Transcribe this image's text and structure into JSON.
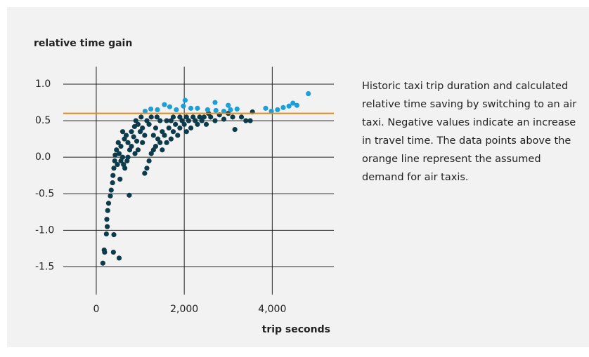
{
  "chart_data": {
    "type": "scatter",
    "ylabel": "relative time gain",
    "xlabel": "trip seconds",
    "description": "Historic taxi trip duration and calculated relative time saving by switching to an air taxi. Negative values indicate an increase in travel time. The data points above the orange line represent the assumed demand for air taxis.",
    "xlim": [
      -750,
      5400
    ],
    "ylim": [
      -1.88,
      1.24
    ],
    "xticks": [
      0,
      {
        "value": 2000,
        "label": "2,000"
      },
      {
        "value": 4000,
        "label": "4,000"
      }
    ],
    "yticks": [
      {
        "value": 1,
        "label": "1.0"
      },
      0.5,
      {
        "value": 0,
        "label": "0.0"
      },
      -0.5,
      {
        "value": -1,
        "label": "-1.0"
      },
      -1.5
    ],
    "grid": true,
    "hline": {
      "value": 0.6,
      "color": "#e08a1e"
    },
    "series": [
      {
        "color": "#0d3b4a",
        "x": [
          150,
          180,
          190,
          230,
          250,
          240,
          260,
          280,
          320,
          340,
          370,
          380,
          400,
          420,
          430,
          390,
          400,
          520,
          540,
          750,
          460,
          520,
          560,
          600,
          620,
          650,
          700,
          640,
          680,
          720,
          760,
          800,
          800,
          850,
          870,
          900,
          950,
          920,
          1000,
          1020,
          1050,
          1100,
          1100,
          1150,
          1200,
          1250,
          1300,
          1350,
          1150,
          1200,
          1250,
          1300,
          1350,
          1400,
          1450,
          1450,
          1500,
          1550,
          1600,
          1600,
          1650,
          1700,
          1750,
          1750,
          1800,
          1850,
          1900,
          1900,
          1950,
          2000,
          2050,
          2100,
          2150,
          2200,
          2300,
          2350,
          2400,
          2500,
          2600,
          2700,
          2800,
          2900,
          3000,
          3100,
          3150,
          3300,
          3400,
          3550,
          3500,
          2450,
          2250,
          1050,
          950,
          880,
          1380,
          1500,
          1700,
          2050,
          2550,
          480,
          500,
          600,
          720,
          560
        ],
        "values": [
          -1.45,
          -1.27,
          -1.3,
          -1.05,
          -0.95,
          -0.85,
          -0.73,
          -0.63,
          -0.53,
          -0.45,
          -0.35,
          -0.25,
          -0.15,
          -0.05,
          0.03,
          -1.3,
          -1.06,
          -1.38,
          -0.3,
          -0.52,
          0.1,
          0.05,
          0.15,
          0,
          -0.1,
          -0.15,
          -0.05,
          0.25,
          0.3,
          0.2,
          0.1,
          0.15,
          0.35,
          0.28,
          0.42,
          0.5,
          0.45,
          0.22,
          0.35,
          0.55,
          0.4,
          0.3,
          -0.22,
          -0.15,
          -0.05,
          0.05,
          0.1,
          0.15,
          0.5,
          0.45,
          0.55,
          0.3,
          0.4,
          0.25,
          0.2,
          0.5,
          0.35,
          0.3,
          0.2,
          0.5,
          0.4,
          0.25,
          0.35,
          0.55,
          0.45,
          0.3,
          0.4,
          0.55,
          0.5,
          0.45,
          0.35,
          0.5,
          0.4,
          0.55,
          0.45,
          0.55,
          0.5,
          0.45,
          0.55,
          0.5,
          0.58,
          0.52,
          0.6,
          0.55,
          0.38,
          0.55,
          0.5,
          0.62,
          0.5,
          0.55,
          0.5,
          0.2,
          0.1,
          0.05,
          0.55,
          0.1,
          0.5,
          0.55,
          0.6,
          -0.1,
          0.2,
          0.35,
          0,
          -0.05
        ]
      },
      {
        "color": "#1a9fd9",
        "x": [
          1110,
          1240,
          1390,
          1550,
          1670,
          1820,
          1980,
          2020,
          2150,
          2300,
          2530,
          2700,
          2720,
          2900,
          3000,
          3050,
          3200,
          3850,
          3980,
          4120,
          4250,
          4380,
          4470,
          4560,
          4820
        ],
        "values": [
          0.63,
          0.66,
          0.65,
          0.72,
          0.69,
          0.65,
          0.7,
          0.78,
          0.67,
          0.67,
          0.65,
          0.75,
          0.64,
          0.63,
          0.71,
          0.65,
          0.66,
          0.67,
          0.63,
          0.65,
          0.68,
          0.7,
          0.74,
          0.71,
          0.87
        ]
      }
    ]
  }
}
